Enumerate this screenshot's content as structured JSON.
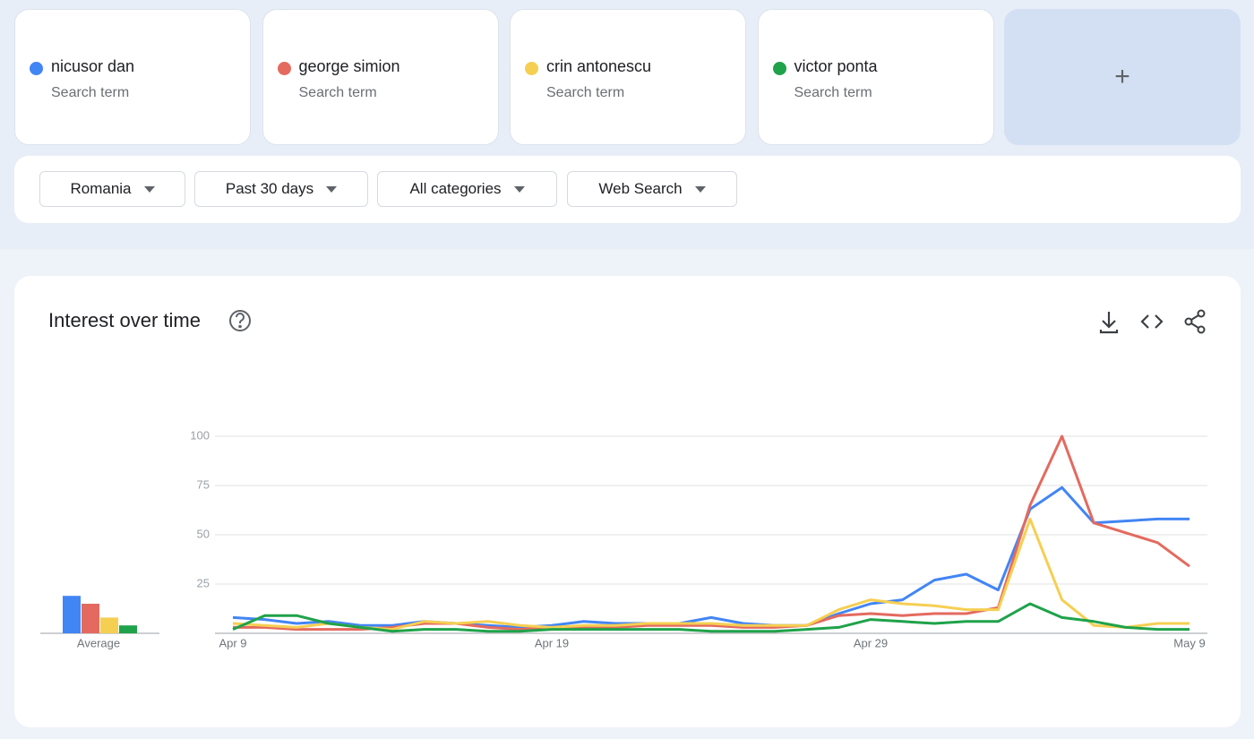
{
  "search_term_label": "Search term",
  "add_term": "+",
  "filters": [
    "Romania",
    "Past 30 days",
    "All categories",
    "Web Search"
  ],
  "chart_data": {
    "type": "line",
    "title": "Interest over time",
    "categories": [
      "Apr 9",
      null,
      null,
      null,
      null,
      null,
      null,
      null,
      null,
      null,
      "Apr 19",
      null,
      null,
      null,
      null,
      null,
      null,
      null,
      null,
      null,
      "Apr 29",
      null,
      null,
      null,
      null,
      null,
      null,
      null,
      null,
      null,
      "May 9"
    ],
    "series": [
      {
        "name": "nicusor dan",
        "color": "#4285f4",
        "values": [
          8,
          7,
          5,
          6,
          4,
          4,
          6,
          5,
          4,
          3,
          4,
          6,
          5,
          5,
          5,
          8,
          5,
          4,
          4,
          10,
          15,
          17,
          27,
          30,
          22,
          63,
          74,
          56,
          57,
          58,
          58
        ]
      },
      {
        "name": "george simion",
        "color": "#e46a5f",
        "values": [
          3,
          3,
          2,
          2,
          2,
          3,
          5,
          5,
          3,
          2,
          3,
          3,
          3,
          4,
          4,
          4,
          3,
          3,
          4,
          9,
          10,
          9,
          10,
          10,
          13,
          65,
          100,
          56,
          51,
          46,
          34
        ]
      },
      {
        "name": "crin antonescu",
        "color": "#f5cf52",
        "values": [
          5,
          4,
          3,
          5,
          3,
          2,
          6,
          5,
          6,
          4,
          3,
          4,
          4,
          5,
          5,
          5,
          4,
          4,
          4,
          12,
          17,
          15,
          14,
          12,
          12,
          58,
          17,
          4,
          3,
          5,
          5
        ]
      },
      {
        "name": "victor ponta",
        "color": "#1fa24a",
        "values": [
          2,
          9,
          9,
          5,
          3,
          1,
          2,
          2,
          1,
          1,
          2,
          2,
          2,
          2,
          2,
          1,
          1,
          1,
          2,
          3,
          7,
          6,
          5,
          6,
          6,
          15,
          8,
          6,
          3,
          2,
          2
        ]
      }
    ],
    "average": {
      "label": "Average",
      "values": [
        19,
        15,
        8,
        4
      ]
    },
    "ylim": [
      0,
      100
    ],
    "yticks": [
      25,
      50,
      75,
      100
    ],
    "grid": true
  }
}
